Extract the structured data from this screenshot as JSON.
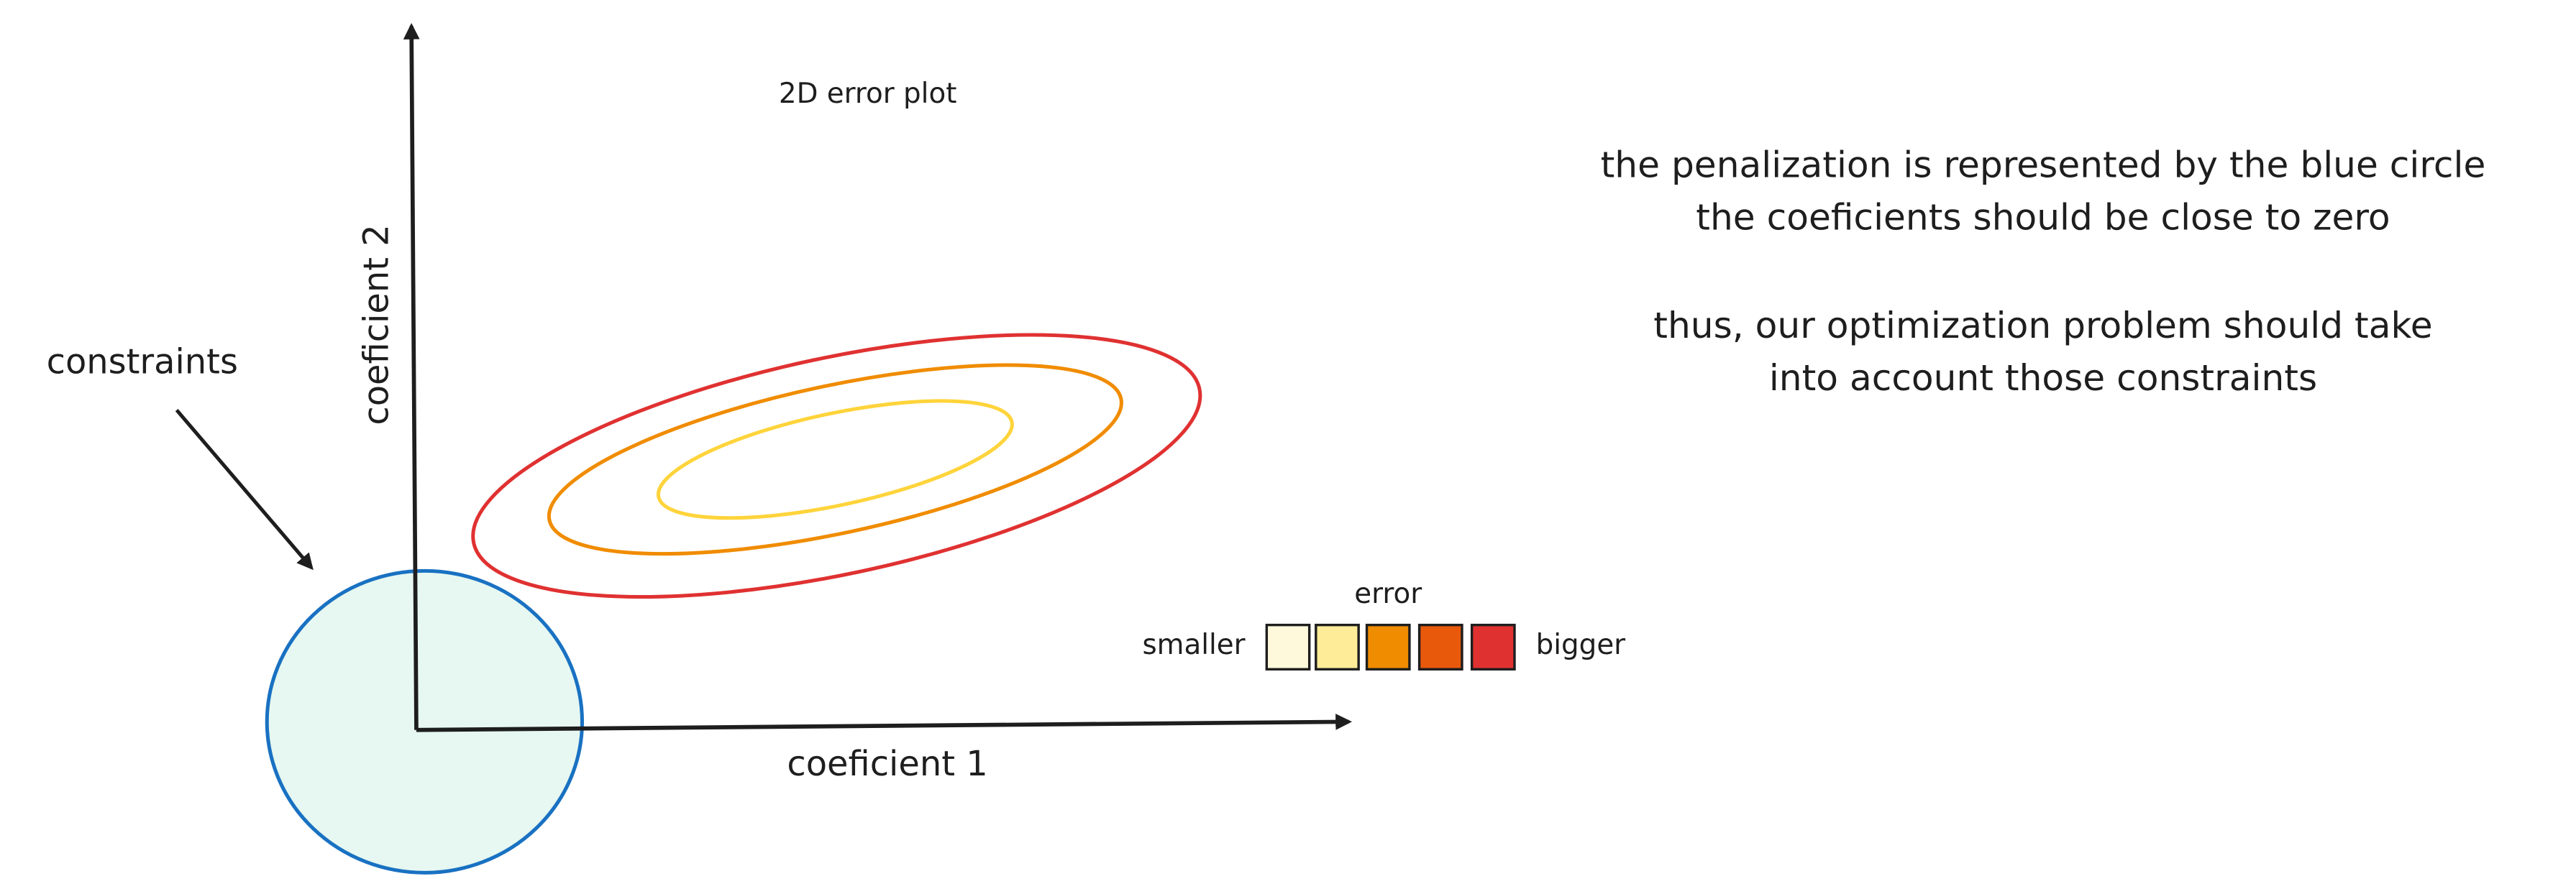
{
  "title": "2D error plot",
  "axes": {
    "x_label": "coeficient 1",
    "y_label": "coeficient 2"
  },
  "constraints_label": "constraints",
  "legend": {
    "title": "error",
    "low": "smaller",
    "high": "bigger"
  },
  "notes": [
    "the penalization is represented by the blue circle",
    "the coeficients should be close to zero",
    "thus, our optimization problem should take",
    "into account those constraints"
  ]
}
